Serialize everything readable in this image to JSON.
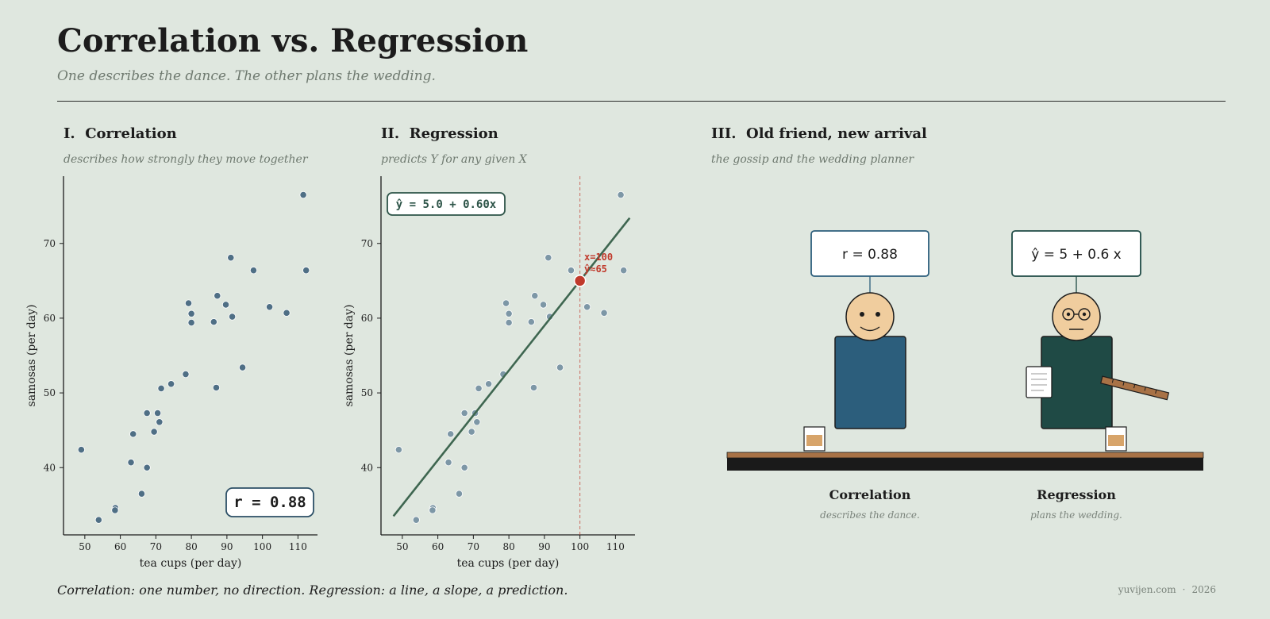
{
  "header": {
    "title": "Correlation vs. Regression",
    "subtitle": "One describes the dance.  The other plans the wedding."
  },
  "panels": {
    "p1": {
      "title": "I.  Correlation",
      "subtitle": "describes how strongly they move together",
      "badge": "r = 0.88"
    },
    "p2": {
      "title": "II.  Regression",
      "subtitle": "predicts Y for any given X",
      "equation": "ŷ = 5.0 + 0.60x",
      "annot_x": "x=100",
      "annot_y": "ŷ≈65"
    },
    "p3": {
      "title": "III.  Old friend, new arrival",
      "subtitle": "the gossip and the wedding planner",
      "left_bubble": "r = 0.88",
      "right_bubble": "ŷ = 5 + 0.6 x",
      "left_name": "Correlation",
      "left_caption": "describes the dance.",
      "right_name": "Regression",
      "right_caption": "plans the wedding."
    }
  },
  "footer": {
    "note": "Correlation: one number, no direction.  Regression: a line, a slope, a prediction.",
    "site": "yuvijen.com",
    "sep": "·",
    "year": "2026"
  },
  "colors": {
    "background": "#dfe7df",
    "point_corr": "#4f6f85",
    "point_reg": "#7d97a6",
    "line": "#3e6650",
    "highlight": "#c0392b",
    "correlation_person": "#2c5e7c",
    "regression_person": "#1f4a45",
    "skin": "#f0cd9e",
    "table_top": "#a87246",
    "table_base": "#1a1a1a"
  },
  "chart_data": [
    {
      "type": "scatter",
      "title": "I.  Correlation",
      "xlabel": "tea cups (per day)",
      "ylabel": "samosas (per day)",
      "xticks": [
        50,
        60,
        70,
        80,
        90,
        100,
        110
      ],
      "yticks": [
        40,
        50,
        60,
        70
      ],
      "xlim": [
        44,
        115.5
      ],
      "ylim": [
        31,
        79
      ],
      "r": 0.88,
      "points": [
        [
          49.0,
          42.4
        ],
        [
          53.9,
          33.0
        ],
        [
          58.6,
          34.6
        ],
        [
          58.5,
          34.3
        ],
        [
          63.0,
          40.7
        ],
        [
          63.6,
          44.5
        ],
        [
          66.0,
          36.5
        ],
        [
          67.5,
          47.3
        ],
        [
          67.5,
          40.0
        ],
        [
          69.5,
          44.8
        ],
        [
          70.5,
          47.3
        ],
        [
          71.0,
          46.1
        ],
        [
          71.5,
          50.6
        ],
        [
          74.3,
          51.2
        ],
        [
          78.4,
          52.5
        ],
        [
          79.2,
          62.0
        ],
        [
          80.0,
          60.6
        ],
        [
          80.0,
          59.4
        ],
        [
          86.3,
          59.5
        ],
        [
          87.0,
          50.7
        ],
        [
          87.3,
          63.0
        ],
        [
          89.7,
          61.8
        ],
        [
          91.1,
          68.1
        ],
        [
          91.5,
          60.2
        ],
        [
          94.4,
          53.4
        ],
        [
          97.5,
          66.4
        ],
        [
          102.0,
          61.5
        ],
        [
          106.8,
          60.7
        ],
        [
          111.5,
          76.5
        ],
        [
          112.3,
          66.4
        ]
      ]
    },
    {
      "type": "scatter",
      "title": "II.  Regression",
      "xlabel": "tea cups (per day)",
      "ylabel": "samosas (per day)",
      "xticks": [
        50,
        60,
        70,
        80,
        90,
        100,
        110
      ],
      "yticks": [
        40,
        50,
        60,
        70
      ],
      "xlim": [
        44,
        115.5
      ],
      "ylim": [
        31,
        79
      ],
      "regression": {
        "intercept": 5.0,
        "slope": 0.6,
        "x_from": 47.5,
        "x_to": 114
      },
      "prediction": {
        "x": 100,
        "y": 65
      },
      "points": [
        [
          49.0,
          42.4
        ],
        [
          53.9,
          33.0
        ],
        [
          58.6,
          34.6
        ],
        [
          58.5,
          34.3
        ],
        [
          63.0,
          40.7
        ],
        [
          63.6,
          44.5
        ],
        [
          66.0,
          36.5
        ],
        [
          67.5,
          47.3
        ],
        [
          67.5,
          40.0
        ],
        [
          69.5,
          44.8
        ],
        [
          70.5,
          47.3
        ],
        [
          71.0,
          46.1
        ],
        [
          71.5,
          50.6
        ],
        [
          74.3,
          51.2
        ],
        [
          78.4,
          52.5
        ],
        [
          79.2,
          62.0
        ],
        [
          80.0,
          60.6
        ],
        [
          80.0,
          59.4
        ],
        [
          86.3,
          59.5
        ],
        [
          87.0,
          50.7
        ],
        [
          87.3,
          63.0
        ],
        [
          89.7,
          61.8
        ],
        [
          91.1,
          68.1
        ],
        [
          91.5,
          60.2
        ],
        [
          94.4,
          53.4
        ],
        [
          97.5,
          66.4
        ],
        [
          102.0,
          61.5
        ],
        [
          106.8,
          60.7
        ],
        [
          111.5,
          76.5
        ],
        [
          112.3,
          66.4
        ]
      ]
    }
  ]
}
